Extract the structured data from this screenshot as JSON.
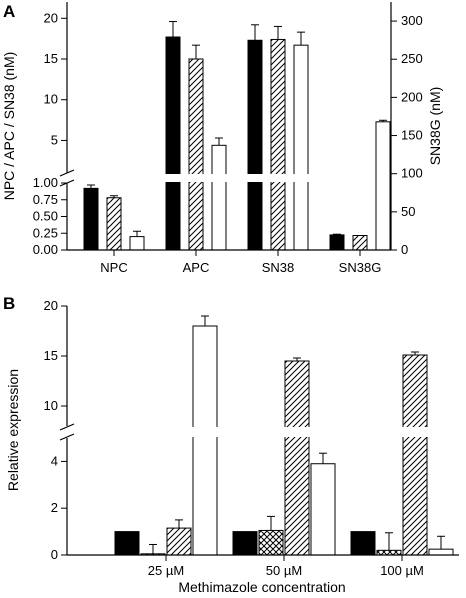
{
  "figure": {
    "panel_labels": [
      "A",
      "B"
    ]
  },
  "chart_data": [
    {
      "type": "bar",
      "panel": "A",
      "categories": [
        "NPC",
        "APC",
        "SN38",
        "SN38G"
      ],
      "series_styles": [
        "solid-black",
        "diagonal-hatch",
        "white"
      ],
      "series": [
        {
          "values": [
            0.92,
            17.7,
            17.3,
            19.8
          ],
          "errors": [
            0.05,
            1.9,
            1.9,
            0.9
          ]
        },
        {
          "values": [
            0.78,
            15.0,
            17.4,
            19.0
          ],
          "errors": [
            0.03,
            1.7,
            1.6,
            0.4
          ]
        },
        {
          "values": [
            0.2,
            4.4,
            16.7,
            168
          ],
          "errors": [
            0.08,
            0.9,
            1.6,
            2.0
          ]
        }
      ],
      "value_axis_note": "SN38G bars are read on the right-hand axis (nM)",
      "ylabel": "NPC / APC / SN38 (nM)",
      "y2label": "SN38G (nM)",
      "yticks_lower": [
        "0.00",
        "0.25",
        "0.50",
        "0.75",
        "1.00"
      ],
      "yticks_upper": [
        "5",
        "10",
        "15",
        "20"
      ],
      "y2ticks": [
        "0",
        "50",
        "100",
        "150",
        "200",
        "250",
        "300"
      ],
      "ylim_lower": [
        0,
        1.0
      ],
      "ylim_upper": [
        1.0,
        22
      ],
      "y2lim": [
        0,
        325
      ],
      "axis_break": true,
      "grid": false
    },
    {
      "type": "bar",
      "panel": "B",
      "categories": [
        "25 µM",
        "50 µM",
        "100 µM"
      ],
      "series_styles": [
        "solid-black",
        "crosshatch",
        "diagonal-hatch",
        "white"
      ],
      "series": [
        {
          "values": [
            1.0,
            1.0,
            1.0
          ],
          "errors": [
            0,
            0,
            0
          ]
        },
        {
          "values": [
            0.05,
            1.05,
            0.2
          ],
          "errors": [
            0.4,
            0.6,
            0.75
          ]
        },
        {
          "values": [
            1.15,
            14.5,
            15.1
          ],
          "errors": [
            0.35,
            0.3,
            0.3
          ]
        },
        {
          "values": [
            18.0,
            3.9,
            0.25
          ],
          "errors": [
            1.0,
            0.45,
            0.55
          ]
        }
      ],
      "xlabel": "Methimazole concentration",
      "ylabel": "Relative expression",
      "yticks_lower": [
        "0",
        "2",
        "4"
      ],
      "yticks_upper": [
        "10",
        "15",
        "20"
      ],
      "ylim_lower": [
        0,
        5
      ],
      "ylim_upper": [
        8,
        20
      ],
      "axis_break": true,
      "grid": false
    }
  ]
}
